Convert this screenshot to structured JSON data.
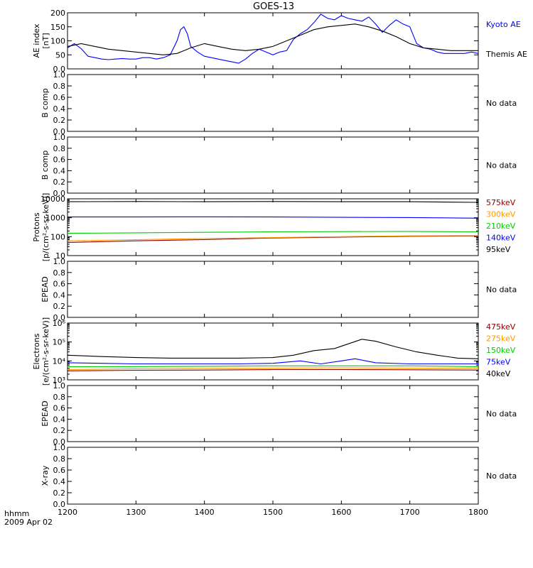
{
  "title": "GOES-13",
  "footer": {
    "time_label": "hhmm",
    "date_label": "2009 Apr 02"
  },
  "x_axis": {
    "ticks": [
      1200,
      1300,
      1400,
      1500,
      1600,
      1700,
      1800
    ],
    "range": [
      1200,
      1800
    ]
  },
  "no_data_label": "No data",
  "chart_data": [
    {
      "type": "line",
      "panel": "ae-index",
      "ylabel_lines": [
        "AE index",
        "[nT]"
      ],
      "ylim": [
        0,
        200
      ],
      "yticks": [
        0,
        50,
        100,
        150,
        200
      ],
      "scale": "linear",
      "series": [
        {
          "name": "Kyoto AE",
          "color": "#0000ff",
          "x": [
            1200,
            1210,
            1220,
            1230,
            1240,
            1250,
            1260,
            1270,
            1280,
            1290,
            1300,
            1310,
            1320,
            1330,
            1340,
            1350,
            1360,
            1365,
            1370,
            1375,
            1380,
            1390,
            1400,
            1410,
            1420,
            1430,
            1440,
            1450,
            1460,
            1470,
            1480,
            1490,
            1500,
            1510,
            1520,
            1530,
            1540,
            1550,
            1560,
            1570,
            1580,
            1590,
            1600,
            1610,
            1620,
            1630,
            1640,
            1650,
            1660,
            1670,
            1680,
            1690,
            1700,
            1710,
            1720,
            1730,
            1740,
            1750,
            1760,
            1770,
            1780,
            1790,
            1800
          ],
          "y": [
            75,
            90,
            72,
            45,
            40,
            35,
            33,
            35,
            37,
            35,
            35,
            40,
            40,
            35,
            40,
            50,
            100,
            140,
            150,
            125,
            80,
            60,
            45,
            40,
            35,
            30,
            25,
            20,
            35,
            55,
            70,
            60,
            50,
            60,
            65,
            105,
            125,
            140,
            165,
            195,
            180,
            175,
            190,
            180,
            175,
            170,
            185,
            160,
            130,
            155,
            175,
            160,
            150,
            90,
            75,
            70,
            60,
            55,
            55,
            55,
            55,
            60,
            55
          ]
        },
        {
          "name": "Themis AE",
          "color": "#000000",
          "x": [
            1200,
            1220,
            1240,
            1260,
            1280,
            1300,
            1320,
            1340,
            1360,
            1380,
            1400,
            1420,
            1440,
            1460,
            1480,
            1500,
            1520,
            1540,
            1560,
            1580,
            1600,
            1620,
            1640,
            1660,
            1680,
            1700,
            1720,
            1740,
            1760,
            1780,
            1800
          ],
          "y": [
            80,
            90,
            80,
            70,
            65,
            60,
            55,
            50,
            55,
            75,
            90,
            80,
            70,
            65,
            70,
            80,
            100,
            120,
            140,
            150,
            155,
            160,
            150,
            135,
            115,
            90,
            75,
            70,
            65,
            65,
            65
          ]
        }
      ]
    },
    {
      "type": "line",
      "panel": "b-comp-1",
      "ylabel_lines": [
        "B comp"
      ],
      "ylim": [
        0,
        1
      ],
      "yticks": [
        0,
        0.2,
        0.4,
        0.6,
        0.8,
        1.0
      ],
      "scale": "linear",
      "status": "No data"
    },
    {
      "type": "line",
      "panel": "b-comp-2",
      "ylabel_lines": [
        "B comp"
      ],
      "ylim": [
        0,
        1
      ],
      "yticks": [
        0,
        0.2,
        0.4,
        0.6,
        0.8,
        1.0
      ],
      "scale": "linear",
      "status": "No data"
    },
    {
      "type": "line",
      "panel": "protons",
      "ylabel_lines": [
        "Protons",
        "[p/(cm²-s-sr-keV)]"
      ],
      "ylim": [
        10,
        10000
      ],
      "yticks": [
        10,
        100,
        1000,
        10000
      ],
      "ytick_labels": [
        "10",
        "100",
        "1000",
        "10000"
      ],
      "scale": "log",
      "series": [
        {
          "name": "575keV",
          "color": "#8b0000",
          "x": [
            1200,
            1300,
            1400,
            1500,
            1600,
            1700,
            1800
          ],
          "y": [
            50,
            60,
            70,
            85,
            95,
            105,
            110
          ]
        },
        {
          "name": "300keV",
          "color": "#ff9900",
          "x": [
            1200,
            1300,
            1400,
            1500,
            1600,
            1700,
            1800
          ],
          "y": [
            60,
            70,
            80,
            90,
            100,
            110,
            115
          ]
        },
        {
          "name": "210keV",
          "color": "#00cc00",
          "x": [
            1200,
            1300,
            1400,
            1500,
            1600,
            1700,
            1800
          ],
          "y": [
            150,
            160,
            170,
            180,
            185,
            190,
            180
          ]
        },
        {
          "name": "140keV",
          "color": "#0000ff",
          "x": [
            1200,
            1300,
            1400,
            1500,
            1600,
            1700,
            1800
          ],
          "y": [
            1100,
            1100,
            1120,
            1100,
            1050,
            1020,
            950
          ]
        },
        {
          "name": "95keV",
          "color": "#000000",
          "x": [
            1200,
            1300,
            1400,
            1500,
            1600,
            1700,
            1800
          ],
          "y": [
            7000,
            7200,
            7000,
            7200,
            7000,
            7000,
            6500
          ]
        }
      ]
    },
    {
      "type": "line",
      "panel": "epead-1",
      "ylabel_lines": [
        "EPEAD"
      ],
      "ylim": [
        0,
        1
      ],
      "yticks": [
        0,
        0.2,
        0.4,
        0.6,
        0.8,
        1.0
      ],
      "scale": "linear",
      "status": "No data"
    },
    {
      "type": "line",
      "panel": "electrons",
      "ylabel_lines": [
        "Electrons",
        "[e/(cm²-s-sr-keV)]"
      ],
      "ylim": [
        1000,
        1000000
      ],
      "yticks": [
        1000,
        10000,
        100000,
        1000000
      ],
      "ytick_labels": [
        "10³",
        "10⁴",
        "10⁵",
        "10⁶"
      ],
      "scale": "log",
      "series": [
        {
          "name": "475keV",
          "color": "#8b0000",
          "x": [
            1200,
            1300,
            1400,
            1500,
            1600,
            1700,
            1800
          ],
          "y": [
            3000,
            3200,
            3300,
            3500,
            3500,
            3400,
            3300
          ]
        },
        {
          "name": "275keV",
          "color": "#ff9900",
          "x": [
            1200,
            1300,
            1400,
            1500,
            1600,
            1700,
            1800
          ],
          "y": [
            3500,
            3800,
            4000,
            4200,
            4300,
            4200,
            4000
          ]
        },
        {
          "name": "150keV",
          "color": "#00cc00",
          "x": [
            1200,
            1300,
            1400,
            1500,
            1600,
            1700,
            1800
          ],
          "y": [
            5000,
            5000,
            5200,
            5500,
            5500,
            5500,
            5000
          ]
        },
        {
          "name": "75keV",
          "color": "#0000ff",
          "x": [
            1200,
            1250,
            1300,
            1350,
            1400,
            1450,
            1500,
            1540,
            1570,
            1600,
            1620,
            1650,
            1700,
            1750,
            1800
          ],
          "y": [
            8000,
            7500,
            7000,
            7000,
            7000,
            7000,
            7500,
            10000,
            7000,
            10000,
            13000,
            8000,
            7000,
            7000,
            7000
          ]
        },
        {
          "name": "40keV",
          "color": "#000000",
          "x": [
            1200,
            1250,
            1300,
            1350,
            1400,
            1450,
            1500,
            1530,
            1560,
            1590,
            1610,
            1630,
            1650,
            1680,
            1710,
            1740,
            1770,
            1800
          ],
          "y": [
            20000,
            17000,
            15000,
            14000,
            14000,
            14000,
            15000,
            20000,
            35000,
            45000,
            80000,
            140000,
            110000,
            55000,
            30000,
            20000,
            14000,
            13000
          ]
        }
      ]
    },
    {
      "type": "line",
      "panel": "epead-2",
      "ylabel_lines": [
        "EPEAD"
      ],
      "ylim": [
        0,
        1
      ],
      "yticks": [
        0,
        0.2,
        0.4,
        0.6,
        0.8,
        1.0
      ],
      "scale": "linear",
      "status": "No data"
    },
    {
      "type": "line",
      "panel": "x-ray",
      "ylabel_lines": [
        "X-ray"
      ],
      "ylim": [
        0,
        1
      ],
      "yticks": [
        0,
        0.2,
        0.4,
        0.6,
        0.8,
        1.0
      ],
      "scale": "linear",
      "status": "No data"
    }
  ]
}
